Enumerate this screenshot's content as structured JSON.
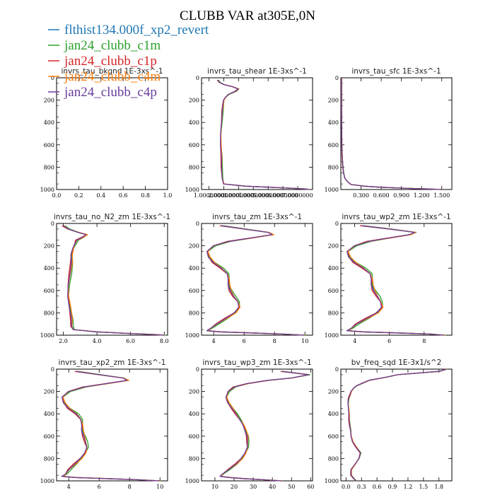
{
  "figure": {
    "title": "CLUBB VAR at305E,0N"
  },
  "legend": [
    {
      "name": "flthist134.000f_xp2_revert",
      "color": "#1f77b4"
    },
    {
      "name": "jan24_clubb_c1m",
      "color": "#2ca02c"
    },
    {
      "name": "jan24_clubb_c1p",
      "color": "#d62728"
    },
    {
      "name": "jan24_clubb_c4m",
      "color": "#ff7f0e"
    },
    {
      "name": "jan24_clubb_c4p",
      "color": "#6a3d9a"
    }
  ],
  "chart_data": [
    {
      "type": "line",
      "title": "invrs_tau_bkgnd   1E-3xs^-1",
      "xlim": [
        0,
        1
      ],
      "ylim": [
        1000,
        0
      ],
      "xticks": [
        0.0,
        0.2,
        0.4,
        0.6,
        0.8,
        1.0
      ],
      "xtick_labels": [
        "0.0",
        "0.2",
        "0.4",
        "0.6",
        "0.8",
        "1.0"
      ],
      "yticks": [
        0,
        200,
        400,
        600,
        800,
        1000
      ],
      "profile": {
        "y": [],
        "x": []
      },
      "offsets": [
        0,
        0,
        0,
        0,
        0
      ]
    },
    {
      "type": "line",
      "title": "invrs_tau_shear   1E-3xs^-1",
      "xlim": [
        0.5,
        8
      ],
      "ylim": [
        1000,
        0
      ],
      "xticks": [
        1,
        2,
        3,
        4,
        5,
        6,
        7
      ],
      "xtick_labels": [
        "1.0000000",
        "2.0000000",
        "3.0000000",
        "4.0000000",
        "5.0000000",
        "6.0000000",
        "7.0000000"
      ],
      "yticks": [
        0,
        200,
        400,
        600,
        800,
        1000
      ],
      "profile": {
        "y": [
          20,
          40,
          60,
          80,
          100,
          120,
          150,
          180,
          200,
          250,
          300,
          400,
          500,
          600,
          700,
          800,
          900,
          950,
          970,
          985,
          995,
          1000
        ],
        "x": [
          1.6,
          1.7,
          2.0,
          2.6,
          3.0,
          2.8,
          2.3,
          2.1,
          2.0,
          1.95,
          1.9,
          1.85,
          1.8,
          1.8,
          1.85,
          1.85,
          1.9,
          2.0,
          3.5,
          6.0,
          7.5,
          7.8
        ]
      },
      "offsets": [
        0,
        0.06,
        -0.04,
        0.03,
        -0.02
      ]
    },
    {
      "type": "line",
      "title": "invrs_tau_sfc   1E-3xs^-1",
      "xlim": [
        0,
        1.65
      ],
      "ylim": [
        1000,
        0
      ],
      "xticks": [
        0.3,
        0.6,
        0.9,
        1.2,
        1.5
      ],
      "xtick_labels": [
        "0.300",
        "0.600",
        "0.900",
        "1.200",
        "1.500"
      ],
      "yticks": [
        0,
        200,
        400,
        600,
        800,
        1000
      ],
      "profile": {
        "y": [
          0,
          200,
          400,
          600,
          700,
          800,
          850,
          900,
          930,
          955,
          970,
          980,
          990,
          995,
          1000
        ],
        "x": [
          0.01,
          0.01,
          0.012,
          0.015,
          0.02,
          0.03,
          0.04,
          0.06,
          0.1,
          0.15,
          0.35,
          0.6,
          1.0,
          1.3,
          1.5
        ]
      },
      "offsets": [
        0,
        0.004,
        -0.003,
        0.002,
        0.0
      ]
    },
    {
      "type": "line",
      "title": "invrs_tau_no_N2_zm   1E-3xs^-1",
      "xlim": [
        1.6,
        8.2
      ],
      "ylim": [
        1000,
        0
      ],
      "xticks": [
        2,
        4,
        6,
        8
      ],
      "xtick_labels": [
        "2.0",
        "4.0",
        "6.0",
        "8.0"
      ],
      "yticks": [
        0,
        200,
        400,
        600,
        800,
        1000
      ],
      "profile": {
        "y": [
          20,
          50,
          80,
          100,
          120,
          150,
          180,
          220,
          280,
          350,
          450,
          550,
          650,
          750,
          850,
          920,
          950,
          970,
          985,
          995,
          1000
        ],
        "x": [
          2.0,
          2.3,
          2.9,
          3.4,
          3.2,
          2.8,
          2.7,
          2.6,
          2.5,
          2.5,
          2.4,
          2.3,
          2.3,
          2.4,
          2.5,
          2.5,
          2.6,
          4.0,
          6.0,
          7.5,
          8.0
        ]
      },
      "offsets": [
        0,
        0.1,
        -0.08,
        0.05,
        -0.05
      ]
    },
    {
      "type": "line",
      "title": "invrs_tau_zm   1E-3xs^-1",
      "xlim": [
        3.2,
        10.5
      ],
      "ylim": [
        1000,
        0
      ],
      "xticks": [
        4,
        6,
        8,
        10
      ],
      "xtick_labels": [
        "4",
        "6",
        "8",
        "10"
      ],
      "yticks": [
        0,
        200,
        400,
        600,
        800,
        1000
      ],
      "profile": {
        "y": [
          20,
          50,
          80,
          100,
          130,
          160,
          200,
          250,
          300,
          350,
          400,
          450,
          500,
          550,
          600,
          650,
          700,
          750,
          800,
          850,
          900,
          940,
          960,
          970,
          980,
          990,
          1000
        ],
        "x": [
          4.5,
          6.0,
          7.6,
          7.9,
          6.5,
          5.0,
          4.0,
          3.6,
          3.7,
          4.0,
          4.5,
          4.9,
          5.0,
          5.0,
          5.1,
          5.3,
          5.6,
          5.7,
          5.4,
          4.8,
          4.2,
          3.8,
          3.6,
          4.5,
          6.5,
          8.5,
          10.0
        ]
      },
      "offsets": [
        0,
        0.15,
        -0.1,
        0.07,
        -0.06
      ]
    },
    {
      "type": "line",
      "title": "invrs_tau_wp2_zm   1E-3xs^-1",
      "xlim": [
        3.2,
        9.6
      ],
      "ylim": [
        1000,
        0
      ],
      "xticks": [
        4,
        6,
        8
      ],
      "xtick_labels": [
        "4",
        "6",
        "8"
      ],
      "yticks": [
        0,
        200,
        400,
        600,
        800,
        1000
      ],
      "profile": {
        "y": [
          20,
          50,
          80,
          100,
          130,
          160,
          200,
          250,
          300,
          350,
          400,
          450,
          500,
          550,
          600,
          650,
          700,
          750,
          800,
          850,
          900,
          940,
          960,
          970,
          980,
          990,
          1000
        ],
        "x": [
          4.4,
          6.0,
          7.5,
          7.2,
          6.0,
          4.8,
          4.0,
          3.6,
          3.7,
          4.0,
          4.5,
          4.9,
          5.0,
          5.0,
          5.1,
          5.3,
          5.5,
          5.6,
          5.3,
          4.7,
          4.1,
          3.8,
          3.6,
          4.5,
          6.5,
          8.3,
          9.2
        ]
      },
      "offsets": [
        0,
        0.15,
        -0.1,
        0.07,
        -0.06
      ]
    },
    {
      "type": "line",
      "title": "invrs_tau_xp2_zm   1E-3xs^-1",
      "xlim": [
        3.2,
        10.5
      ],
      "ylim": [
        1000,
        0
      ],
      "xticks": [
        4,
        6,
        8,
        10
      ],
      "xtick_labels": [
        "4",
        "6",
        "8",
        "10"
      ],
      "yticks": [
        0,
        200,
        400,
        600,
        800,
        1000
      ],
      "profile": {
        "y": [
          20,
          50,
          80,
          100,
          130,
          160,
          200,
          250,
          300,
          350,
          400,
          450,
          500,
          550,
          600,
          650,
          700,
          750,
          800,
          850,
          900,
          940,
          960,
          970,
          980,
          990,
          1000
        ],
        "x": [
          4.5,
          6.0,
          7.6,
          7.9,
          6.5,
          5.0,
          4.0,
          3.6,
          3.7,
          4.0,
          4.5,
          4.8,
          4.9,
          4.9,
          5.0,
          5.1,
          5.2,
          5.1,
          4.8,
          4.4,
          4.0,
          3.8,
          3.6,
          4.5,
          6.5,
          8.5,
          10.0
        ]
      },
      "offsets": [
        0,
        0.15,
        -0.1,
        0.07,
        -0.06
      ]
    },
    {
      "type": "line",
      "title": "invrs_tau_wp3_zm   1E-3xs^-1",
      "xlim": [
        3,
        61
      ],
      "ylim": [
        1000,
        0
      ],
      "xticks": [
        10,
        20,
        30,
        40,
        50,
        60
      ],
      "xtick_labels": [
        "10",
        "20",
        "30",
        "40",
        "50",
        "60"
      ],
      "yticks": [
        0,
        200,
        400,
        600,
        800,
        1000
      ],
      "profile": {
        "y": [
          20,
          50,
          80,
          100,
          130,
          160,
          200,
          250,
          300,
          350,
          400,
          450,
          500,
          550,
          600,
          650,
          700,
          750,
          800,
          850,
          900,
          940,
          960,
          970,
          980,
          990,
          1000
        ],
        "x": [
          45,
          59,
          50,
          38,
          27,
          20,
          17,
          16,
          17,
          19,
          21,
          23,
          25,
          26,
          27,
          27,
          27,
          26,
          24,
          21,
          17,
          14,
          13,
          18,
          25,
          35,
          45
        ]
      },
      "offsets": [
        0,
        0.8,
        -0.6,
        0.5,
        -0.4
      ]
    },
    {
      "type": "line",
      "title": "bv_freq_sqd   1E-3x1/s^2",
      "xlim": [
        -0.1,
        2.05
      ],
      "ylim": [
        1000,
        0
      ],
      "xticks": [
        0.0,
        0.3,
        0.6,
        0.9,
        1.2,
        1.5,
        1.8
      ],
      "xtick_labels": [
        "0.0",
        "0.3",
        "0.6",
        "0.9",
        "1.2",
        "1.5",
        "1.8"
      ],
      "yticks": [
        0,
        200,
        400,
        600,
        800,
        1000
      ],
      "profile": {
        "y": [
          0,
          20,
          50,
          70,
          100,
          130,
          150,
          170,
          200,
          230,
          260,
          300,
          350,
          400,
          450,
          500,
          550,
          600,
          650,
          700,
          750,
          800,
          850,
          900,
          950,
          980,
          1000
        ],
        "x": [
          1.95,
          1.8,
          1.0,
          0.8,
          0.45,
          0.3,
          0.2,
          0.15,
          0.1,
          0.08,
          0.05,
          0.04,
          0.05,
          0.06,
          0.06,
          0.07,
          0.09,
          0.1,
          0.13,
          0.2,
          0.28,
          0.25,
          0.18,
          0.1,
          0.1,
          0.15,
          0.2
        ]
      },
      "offsets": [
        0,
        0.01,
        -0.01,
        0.008,
        -0.005
      ]
    }
  ]
}
